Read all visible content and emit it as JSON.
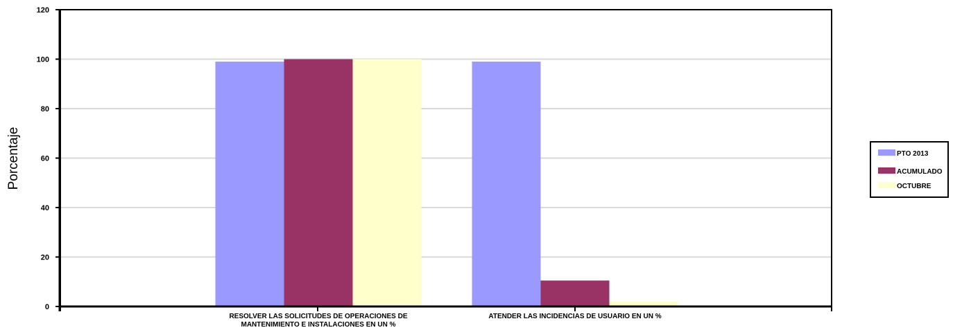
{
  "chart_data": {
    "type": "bar",
    "title": "",
    "xlabel": "",
    "ylabel": "Porcentaje",
    "ylim": [
      0,
      120
    ],
    "yticks": [
      0,
      20,
      40,
      60,
      80,
      100,
      120
    ],
    "grid": true,
    "legend_position": "right",
    "categories": [
      [
        "RESOLVER LAS SOLICITUDES DE OPERACIONES DE",
        "MANTENIMIENTO E INSTALACIONES EN UN %"
      ],
      [
        "ATENDER LAS INCIDENCIAS DE USUARIO EN UN %"
      ]
    ],
    "series": [
      {
        "name": "PTO 2013",
        "color": "#9999FF",
        "values": [
          99,
          99
        ]
      },
      {
        "name": "ACUMULADO",
        "color": "#993366",
        "values": [
          100,
          10.5
        ]
      },
      {
        "name": "OCTUBRE",
        "color": "#FFFFCC",
        "values": [
          100,
          2
        ]
      }
    ]
  }
}
